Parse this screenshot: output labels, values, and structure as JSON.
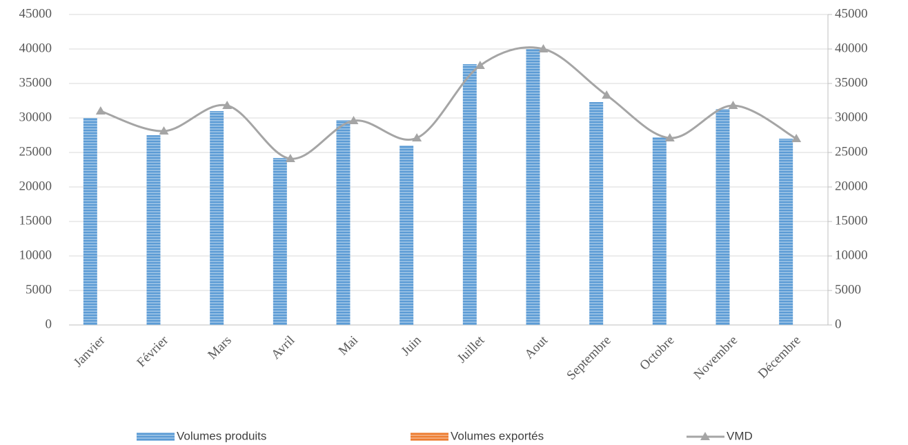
{
  "chart_data": {
    "type": "bar",
    "categories": [
      "Janvier",
      "Février",
      "Mars",
      "Avril",
      "Mai",
      "Juin",
      "Juillet",
      "Aout",
      "Septembre",
      "Octobre",
      "Novembre",
      "Décembre"
    ],
    "series": [
      {
        "name": "Volumes produits",
        "type": "bar",
        "color": "#5b9bd5",
        "values": [
          30000,
          27500,
          31000,
          24200,
          29700,
          26000,
          37800,
          40000,
          32300,
          27200,
          31300,
          27000
        ]
      },
      {
        "name": "Volumes exportés",
        "type": "bar",
        "color": "#ed7d31",
        "values": [
          0,
          0,
          0,
          0,
          0,
          0,
          0,
          0,
          0,
          0,
          0,
          0
        ]
      },
      {
        "name": "VMD",
        "type": "line",
        "axis": "y2",
        "color": "#a5a5a5",
        "values": [
          31000,
          28100,
          31800,
          24100,
          29600,
          27100,
          37600,
          40000,
          33300,
          27100,
          31800,
          27000
        ]
      }
    ],
    "ylim": [
      0,
      45000
    ],
    "yticks": [
      0,
      5000,
      10000,
      15000,
      20000,
      25000,
      30000,
      35000,
      40000,
      45000
    ],
    "y2lim": [
      0,
      45000
    ],
    "y2ticks": [
      0,
      5000,
      10000,
      15000,
      20000,
      25000,
      30000,
      35000,
      40000,
      45000
    ],
    "grid": true,
    "smooth": true,
    "legend": "bottom"
  }
}
